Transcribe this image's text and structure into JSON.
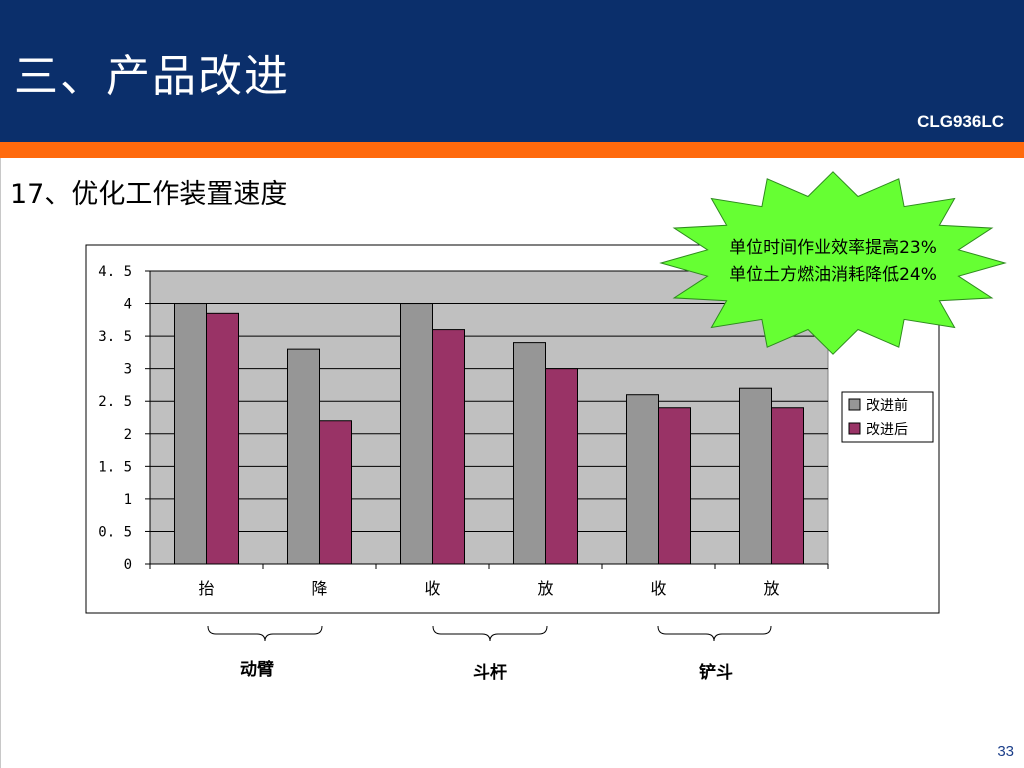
{
  "header": {
    "title": "三、产品改进",
    "code": "CLG936LC"
  },
  "subtitle": "17、优化工作装置速度",
  "callout": {
    "line1": "单位时间作业效率提高23%",
    "line2": "单位土方燃油消耗降低24%"
  },
  "groups": [
    {
      "label": "动臂"
    },
    {
      "label": "斗杆"
    },
    {
      "label": "铲斗"
    }
  ],
  "page_number": "33",
  "colors": {
    "header_bg": "#0b2f6b",
    "accent_orange": "#ff6a0d",
    "series_before": "#969696",
    "series_after": "#993366",
    "plot_bg": "#c0c0c0",
    "callout_fill": "#66ff33"
  },
  "chart_data": {
    "type": "bar",
    "categories": [
      "抬",
      "降",
      "收",
      "放",
      "收",
      "放"
    ],
    "series": [
      {
        "name": "改进前",
        "values": [
          4.0,
          3.3,
          4.0,
          3.4,
          2.6,
          2.7
        ]
      },
      {
        "name": "改进后",
        "values": [
          3.85,
          2.2,
          3.6,
          3.0,
          2.4,
          2.4
        ]
      }
    ],
    "yticks": [
      "0",
      "0.5",
      "1",
      "1.5",
      "2",
      "2.5",
      "3",
      "3.5",
      "4",
      "4.5"
    ],
    "ylim": [
      0,
      4.5
    ],
    "grid": true,
    "legend": "right"
  }
}
